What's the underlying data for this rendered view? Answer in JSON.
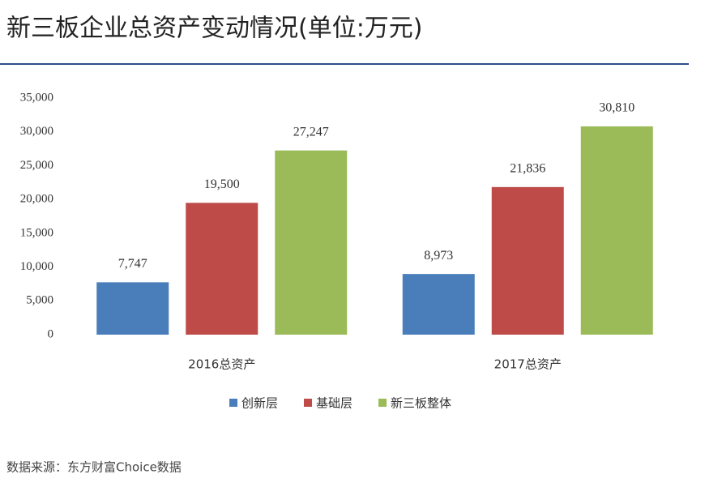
{
  "chart_data": {
    "type": "bar",
    "title": "新三板企业总资产变动情况(单位:万元)",
    "source": "数据来源：东方财富Choice数据",
    "categories": [
      "2016总资产",
      "2017总资产"
    ],
    "series": [
      {
        "name": "创新层",
        "color": "#4a7ebb",
        "values": [
          7747,
          8973
        ],
        "value_labels": [
          "7,747",
          "8,973"
        ]
      },
      {
        "name": "基础层",
        "color": "#be4b48",
        "values": [
          19500,
          21836
        ],
        "value_labels": [
          "19,500",
          "21,836"
        ]
      },
      {
        "name": "新三板整体",
        "color": "#9bbb59",
        "values": [
          27247,
          30810
        ],
        "value_labels": [
          "27,247",
          "30,810"
        ]
      }
    ],
    "ylim": [
      0,
      35000
    ],
    "yticks": [
      0,
      {
        "value": 5000,
        "label": "5,000"
      },
      {
        "value": 10000,
        "label": "10,000"
      },
      {
        "value": 15000,
        "label": "15,000"
      },
      {
        "value": 20000,
        "label": "20,000"
      },
      {
        "value": 25000,
        "label": "25,000"
      },
      {
        "value": 30000,
        "label": "30,000"
      },
      {
        "value": 35000,
        "label": "35,000"
      }
    ],
    "grid": false
  }
}
